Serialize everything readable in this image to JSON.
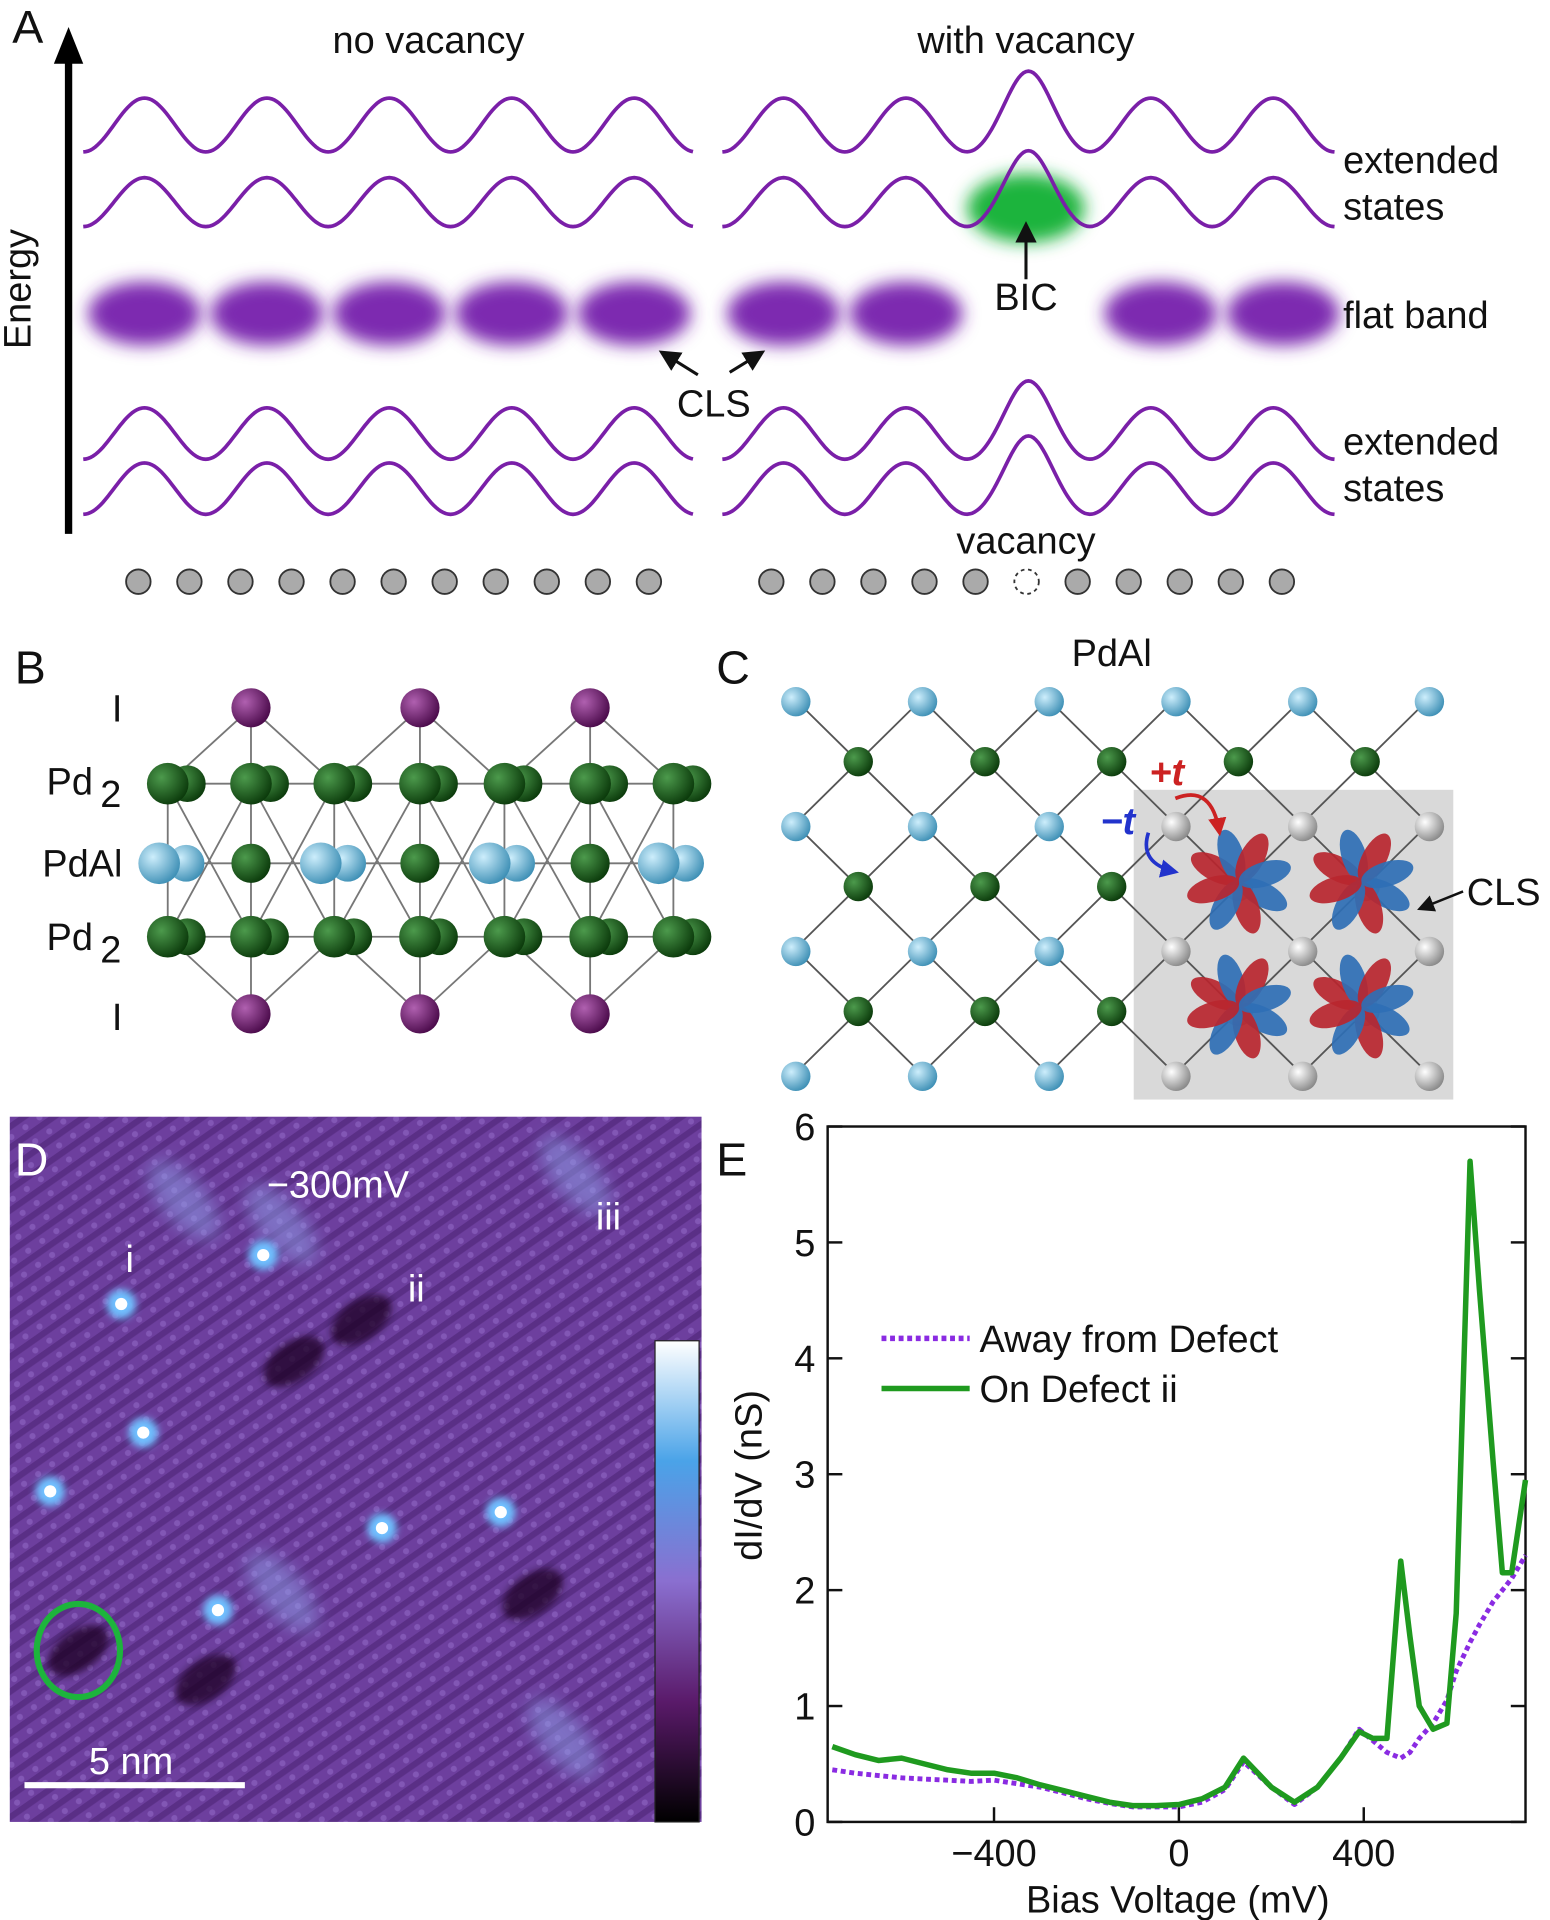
{
  "panel_a": {
    "label": "A",
    "left_title": "no vacancy",
    "right_title": "with vacancy",
    "axis_label": "Energy",
    "upper_label": [
      "extended",
      "states"
    ],
    "flat_band_label": "flat band",
    "bic_label": "BIC",
    "cls_label": "CLS",
    "lower_label": [
      "extended",
      "states"
    ],
    "vacancy_label": "vacancy"
  },
  "panel_b": {
    "label": "B",
    "layers": [
      {
        "name": "I"
      },
      {
        "name": "Pd",
        "subscript": "2"
      },
      {
        "name": "PdAl"
      },
      {
        "name": "Pd",
        "subscript": "2"
      },
      {
        "name": "I"
      }
    ]
  },
  "panel_c": {
    "label": "C",
    "title": "PdAl",
    "hopping_pos": "+t",
    "hopping_neg": "−t",
    "cls_label": "CLS"
  },
  "panel_d": {
    "label": "D",
    "bias": "−300mV",
    "defects": [
      "i",
      "ii",
      "iii"
    ],
    "scale_bar": "5 nm"
  },
  "chart_data": {
    "type": "line",
    "panel_label": "E",
    "x_label": "Bias Voltage (mV)",
    "y_label": "dI/dV (nS)",
    "x": [
      -750,
      -700,
      -650,
      -600,
      -550,
      -500,
      -450,
      -400,
      -350,
      -300,
      -250,
      -200,
      -150,
      -100,
      -50,
      0,
      50,
      100,
      140,
      200,
      250,
      300,
      350,
      390,
      420,
      450,
      480,
      500,
      520,
      550,
      580,
      600,
      630,
      650,
      680,
      700,
      720,
      750
    ],
    "series": [
      {
        "name": "Away from Defect",
        "color": "#8a2be2",
        "dash": "dotted",
        "values": [
          0.45,
          0.42,
          0.4,
          0.38,
          0.37,
          0.36,
          0.35,
          0.36,
          0.33,
          0.3,
          0.25,
          0.2,
          0.16,
          0.13,
          0.13,
          0.13,
          0.17,
          0.28,
          0.52,
          0.3,
          0.15,
          0.3,
          0.55,
          0.8,
          0.7,
          0.6,
          0.55,
          0.6,
          0.72,
          0.85,
          1.05,
          1.3,
          1.55,
          1.7,
          1.9,
          2.0,
          2.1,
          2.3
        ]
      },
      {
        "name": "On Defect ii",
        "color": "#1f9a1f",
        "dash": "solid",
        "values": [
          0.65,
          0.58,
          0.53,
          0.55,
          0.5,
          0.45,
          0.42,
          0.42,
          0.38,
          0.32,
          0.27,
          0.22,
          0.17,
          0.14,
          0.14,
          0.15,
          0.2,
          0.3,
          0.55,
          0.3,
          0.17,
          0.3,
          0.55,
          0.78,
          0.72,
          0.72,
          2.25,
          1.6,
          1.0,
          0.8,
          0.85,
          1.8,
          5.7,
          4.6,
          3.1,
          2.15,
          2.15,
          2.95
        ]
      }
    ],
    "xlim": [
      -760,
      750
    ],
    "xticks": [
      {
        "value": -400,
        "label": "−400"
      },
      0,
      400
    ],
    "ylim": [
      0,
      6
    ],
    "yticks": [
      0,
      1,
      2,
      3,
      4,
      5,
      6
    ],
    "legend": "upper left"
  }
}
